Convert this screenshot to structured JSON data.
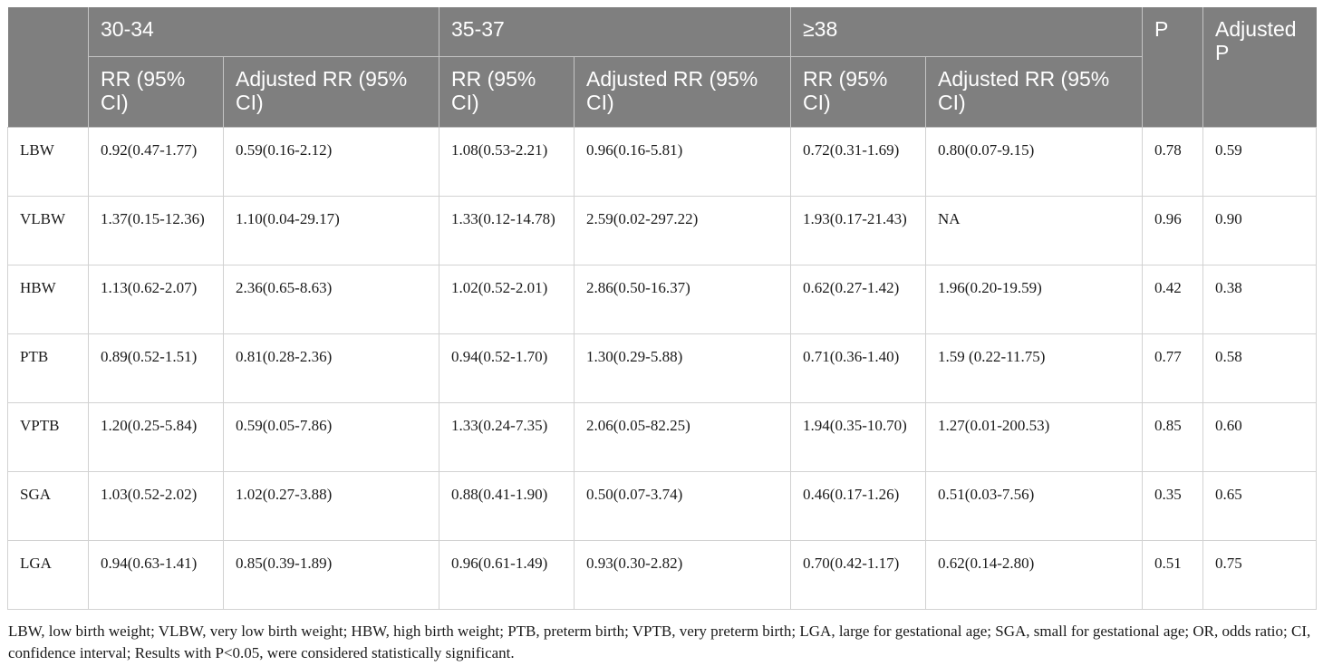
{
  "header": {
    "groups": [
      "30-34",
      "35-37",
      "≥38"
    ],
    "p": "P",
    "adjusted_p": "Adjusted P",
    "sub": [
      "RR (95% CI)",
      "Adjusted RR (95% CI)",
      "RR (95% CI)",
      "Adjusted RR (95% CI)",
      "RR (95% CI)",
      "Adjusted RR (95% CI)"
    ]
  },
  "rows": [
    {
      "label": "LBW",
      "cells": [
        "0.92(0.47-1.77)",
        "0.59(0.16-2.12)",
        "1.08(0.53-2.21)",
        "0.96(0.16-5.81)",
        "0.72(0.31-1.69)",
        "0.80(0.07-9.15)",
        "0.78",
        "0.59"
      ]
    },
    {
      "label": "VLBW",
      "cells": [
        "1.37(0.15-12.36)",
        "1.10(0.04-29.17)",
        "1.33(0.12-14.78)",
        "2.59(0.02-297.22)",
        "1.93(0.17-21.43)",
        "NA",
        "0.96",
        "0.90"
      ]
    },
    {
      "label": "HBW",
      "cells": [
        "1.13(0.62-2.07)",
        "2.36(0.65-8.63)",
        "1.02(0.52-2.01)",
        "2.86(0.50-16.37)",
        "0.62(0.27-1.42)",
        "1.96(0.20-19.59)",
        "0.42",
        "0.38"
      ]
    },
    {
      "label": "PTB",
      "cells": [
        "0.89(0.52-1.51)",
        "0.81(0.28-2.36)",
        "0.94(0.52-1.70)",
        "1.30(0.29-5.88)",
        "0.71(0.36-1.40)",
        "1.59 (0.22-11.75)",
        "0.77",
        "0.58"
      ]
    },
    {
      "label": "VPTB",
      "cells": [
        "1.20(0.25-5.84)",
        "0.59(0.05-7.86)",
        "1.33(0.24-7.35)",
        "2.06(0.05-82.25)",
        "1.94(0.35-10.70)",
        "1.27(0.01-200.53)",
        "0.85",
        "0.60"
      ]
    },
    {
      "label": "SGA",
      "cells": [
        "1.03(0.52-2.02)",
        "1.02(0.27-3.88)",
        "0.88(0.41-1.90)",
        "0.50(0.07-3.74)",
        "0.46(0.17-1.26)",
        "0.51(0.03-7.56)",
        "0.35",
        "0.65"
      ]
    },
    {
      "label": "LGA",
      "cells": [
        "0.94(0.63-1.41)",
        "0.85(0.39-1.89)",
        "0.96(0.61-1.49)",
        "0.93(0.30-2.82)",
        "0.70(0.42-1.17)",
        "0.62(0.14-2.80)",
        "0.51",
        "0.75"
      ]
    }
  ],
  "footnote": "LBW, low birth weight; VLBW, very low birth weight; HBW, high birth weight; PTB, preterm birth; VPTB, very preterm birth; LGA, large for gestational age; SGA, small for gestational age; OR, odds ratio; CI, confidence interval; Results with P<0.05, were considered statistically significant.",
  "colors": {
    "header_bg": "#7f7f7f",
    "header_text": "#ffffff",
    "grid": "#d2d2d2"
  }
}
